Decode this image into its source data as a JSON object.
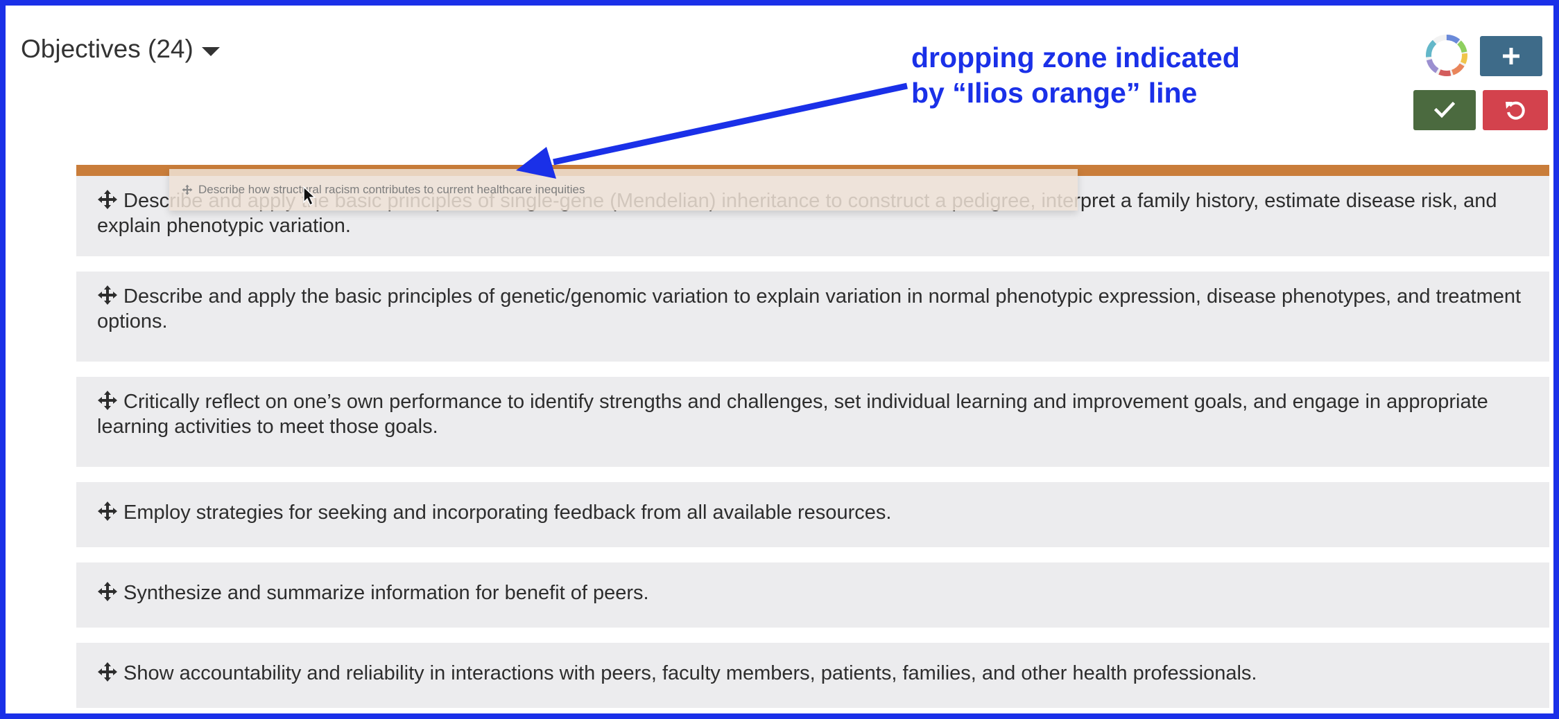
{
  "header": {
    "title": "Objectives (24)"
  },
  "annotation": {
    "line1": "dropping zone indicated",
    "line2": "by “Ilios orange” line",
    "color": "#1a30e8"
  },
  "drag_ghost": {
    "text": "Describe how structural racism contributes to current healthcare inequities"
  },
  "objectives": [
    "Describe and apply the basic principles of single-gene (Mendelian) inheritance to construct a pedigree, interpret a family history, estimate disease risk, and explain phenotypic variation.",
    "Describe and apply the basic principles of genetic/genomic variation to explain variation in normal phenotypic expression, disease phenotypes, and treatment options.",
    "Critically reflect on one’s own performance to identify strengths and challenges, set individual learning and improvement goals, and engage in appropriate learning activities to meet those goals.",
    "Employ strategies for seeking and incorporating feedback from all available resources.",
    "Synthesize and summarize information for benefit of peers.",
    "Show accountability and reliability in interactions with peers, faculty members, patients, families, and other health professionals."
  ],
  "colors": {
    "frame": "#1a30e8",
    "drop_line": "#c97d3a",
    "add_button": "#3e6b89",
    "save_button": "#4b6a3f",
    "cancel_button": "#d3424d",
    "objective_bg": "#ececee"
  },
  "icons": {
    "add": "plus-icon",
    "save": "check-icon",
    "cancel": "undo-icon",
    "drag": "move-icon",
    "progress": "progress-ring-icon"
  }
}
